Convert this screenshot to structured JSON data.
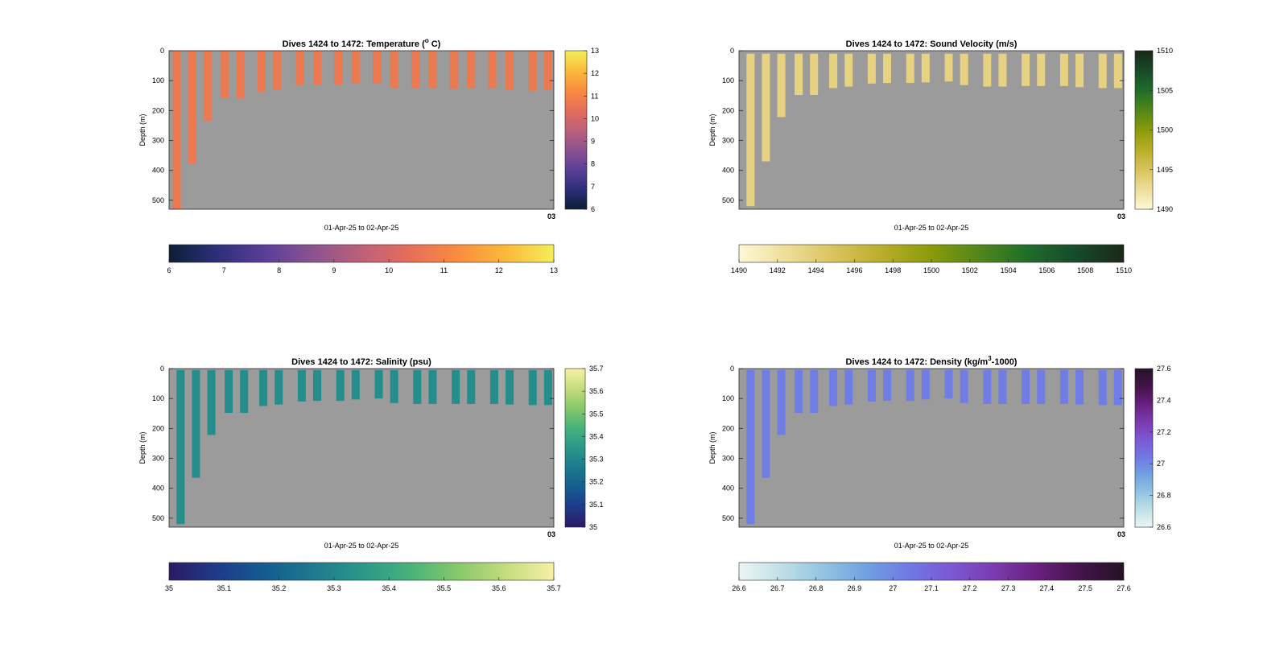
{
  "chart_data": [
    {
      "type": "heatmap",
      "title_prefix": "Dives 1424 to 1472: Temperature (",
      "title_sup": "o",
      "title_suffix": " C)",
      "ylabel": "Depth (m)",
      "xlabel": "01-Apr-25 to 02-Apr-25",
      "x_end_tick": "03",
      "ylim": [
        0,
        530
      ],
      "yticks": [
        "0",
        "100",
        "200",
        "300",
        "400",
        "500"
      ],
      "clim": [
        6,
        13
      ],
      "colorbar_ticks": [
        "6",
        "7",
        "8",
        "9",
        "10",
        "11",
        "12",
        "13"
      ],
      "hcolorbar_ticks": [
        "6",
        "7",
        "8",
        "9",
        "10",
        "11",
        "12",
        "13"
      ],
      "colormap": [
        "#0b1f35",
        "#2d2f7a",
        "#5a3f98",
        "#8c5390",
        "#bd6079",
        "#e56d5a",
        "#f98c3e",
        "#fbb93a",
        "#f3ef59"
      ],
      "profile_value": 10.7,
      "profiles": [
        {
          "t": 0.02,
          "top": 0,
          "bottom": 530
        },
        {
          "t": 0.06,
          "top": 0,
          "bottom": 378
        },
        {
          "t": 0.1,
          "top": 0,
          "bottom": 235
        },
        {
          "t": 0.145,
          "top": 0,
          "bottom": 157
        },
        {
          "t": 0.185,
          "top": 0,
          "bottom": 160
        },
        {
          "t": 0.24,
          "top": 0,
          "bottom": 138
        },
        {
          "t": 0.28,
          "top": 0,
          "bottom": 132
        },
        {
          "t": 0.34,
          "top": 0,
          "bottom": 116
        },
        {
          "t": 0.385,
          "top": 0,
          "bottom": 113
        },
        {
          "t": 0.44,
          "top": 0,
          "bottom": 113
        },
        {
          "t": 0.485,
          "top": 0,
          "bottom": 110
        },
        {
          "t": 0.54,
          "top": 0,
          "bottom": 110
        },
        {
          "t": 0.585,
          "top": 0,
          "bottom": 125
        },
        {
          "t": 0.64,
          "top": 0,
          "bottom": 125
        },
        {
          "t": 0.685,
          "top": 0,
          "bottom": 125
        },
        {
          "t": 0.74,
          "top": 0,
          "bottom": 128
        },
        {
          "t": 0.785,
          "top": 0,
          "bottom": 125
        },
        {
          "t": 0.84,
          "top": 0,
          "bottom": 125
        },
        {
          "t": 0.885,
          "top": 0,
          "bottom": 130
        },
        {
          "t": 0.945,
          "top": 0,
          "bottom": 134
        },
        {
          "t": 0.985,
          "top": 0,
          "bottom": 132
        }
      ]
    },
    {
      "type": "heatmap",
      "title_prefix": "Dives 1424 to 1472: Sound Velocity (m/s)",
      "title_sup": "",
      "title_suffix": "",
      "ylabel": "Depth (m)",
      "xlabel": "01-Apr-25 to 02-Apr-25",
      "x_end_tick": "03",
      "ylim": [
        0,
        530
      ],
      "yticks": [
        "0",
        "100",
        "200",
        "300",
        "400",
        "500"
      ],
      "clim": [
        1490,
        1510
      ],
      "colorbar_ticks": [
        "1490",
        "1495",
        "1500",
        "1505",
        "1510"
      ],
      "hcolorbar_ticks": [
        "1490",
        "1492",
        "1494",
        "1496",
        "1498",
        "1500",
        "1502",
        "1504",
        "1506",
        "1508",
        "1510"
      ],
      "colormap": [
        "#fdf9d6",
        "#eedd99",
        "#d9c25c",
        "#b9ad28",
        "#8a9a0a",
        "#52861a",
        "#1f6d2a",
        "#174a2a",
        "#1a2818"
      ],
      "profile_value": 1493.5,
      "profiles": [
        {
          "t": 0.03,
          "top": 10,
          "bottom": 520
        },
        {
          "t": 0.07,
          "top": 10,
          "bottom": 370
        },
        {
          "t": 0.11,
          "top": 10,
          "bottom": 222
        },
        {
          "t": 0.155,
          "top": 10,
          "bottom": 148
        },
        {
          "t": 0.195,
          "top": 10,
          "bottom": 148
        },
        {
          "t": 0.245,
          "top": 10,
          "bottom": 125
        },
        {
          "t": 0.285,
          "top": 10,
          "bottom": 120
        },
        {
          "t": 0.345,
          "top": 10,
          "bottom": 110
        },
        {
          "t": 0.385,
          "top": 10,
          "bottom": 108
        },
        {
          "t": 0.445,
          "top": 10,
          "bottom": 108
        },
        {
          "t": 0.485,
          "top": 10,
          "bottom": 106
        },
        {
          "t": 0.545,
          "top": 10,
          "bottom": 103
        },
        {
          "t": 0.585,
          "top": 10,
          "bottom": 115
        },
        {
          "t": 0.645,
          "top": 10,
          "bottom": 120
        },
        {
          "t": 0.685,
          "top": 10,
          "bottom": 120
        },
        {
          "t": 0.745,
          "top": 10,
          "bottom": 118
        },
        {
          "t": 0.785,
          "top": 10,
          "bottom": 118
        },
        {
          "t": 0.845,
          "top": 10,
          "bottom": 118
        },
        {
          "t": 0.885,
          "top": 10,
          "bottom": 122
        },
        {
          "t": 0.945,
          "top": 10,
          "bottom": 125
        },
        {
          "t": 0.985,
          "top": 10,
          "bottom": 125
        }
      ]
    },
    {
      "type": "heatmap",
      "title_prefix": "Dives 1424 to 1472: Salinity (psu)",
      "title_sup": "",
      "title_suffix": "",
      "ylabel": "Depth (m)",
      "xlabel": "01-Apr-25 to 02-Apr-25",
      "x_end_tick": "03",
      "ylim": [
        0,
        530
      ],
      "yticks": [
        "0",
        "100",
        "200",
        "300",
        "400",
        "500"
      ],
      "clim": [
        35,
        35.7
      ],
      "colorbar_ticks": [
        "35",
        "35.1",
        "35.2",
        "35.3",
        "35.4",
        "35.5",
        "35.6",
        "35.7"
      ],
      "hcolorbar_ticks": [
        "35",
        "35.1",
        "35.2",
        "35.3",
        "35.4",
        "35.5",
        "35.6",
        "35.7"
      ],
      "colormap": [
        "#2a1a63",
        "#1f3a8c",
        "#155c90",
        "#1c7a8e",
        "#2a978a",
        "#47b27a",
        "#86c86a",
        "#c5dc7c",
        "#f6f1a6"
      ],
      "profile_value": 35.32,
      "profiles": [
        {
          "t": 0.03,
          "top": 5,
          "bottom": 520
        },
        {
          "t": 0.07,
          "top": 5,
          "bottom": 365
        },
        {
          "t": 0.11,
          "top": 5,
          "bottom": 222
        },
        {
          "t": 0.155,
          "top": 5,
          "bottom": 148
        },
        {
          "t": 0.195,
          "top": 5,
          "bottom": 148
        },
        {
          "t": 0.245,
          "top": 5,
          "bottom": 125
        },
        {
          "t": 0.285,
          "top": 5,
          "bottom": 120
        },
        {
          "t": 0.345,
          "top": 5,
          "bottom": 110
        },
        {
          "t": 0.385,
          "top": 5,
          "bottom": 108
        },
        {
          "t": 0.445,
          "top": 5,
          "bottom": 108
        },
        {
          "t": 0.485,
          "top": 5,
          "bottom": 103
        },
        {
          "t": 0.545,
          "top": 5,
          "bottom": 100
        },
        {
          "t": 0.585,
          "top": 5,
          "bottom": 115
        },
        {
          "t": 0.645,
          "top": 5,
          "bottom": 118
        },
        {
          "t": 0.685,
          "top": 5,
          "bottom": 118
        },
        {
          "t": 0.745,
          "top": 5,
          "bottom": 118
        },
        {
          "t": 0.785,
          "top": 5,
          "bottom": 118
        },
        {
          "t": 0.845,
          "top": 5,
          "bottom": 118
        },
        {
          "t": 0.885,
          "top": 5,
          "bottom": 120
        },
        {
          "t": 0.945,
          "top": 5,
          "bottom": 122
        },
        {
          "t": 0.985,
          "top": 5,
          "bottom": 122
        }
      ]
    },
    {
      "type": "heatmap",
      "title_prefix": "Dives 1424 to 1472: Density (kg/m",
      "title_sup": "3",
      "title_suffix": "-1000)",
      "ylabel": "Depth (m)",
      "xlabel": "01-Apr-25 to 02-Apr-25",
      "x_end_tick": "03",
      "ylim": [
        0,
        530
      ],
      "yticks": [
        "0",
        "100",
        "200",
        "300",
        "400",
        "500"
      ],
      "clim": [
        26.6,
        27.6
      ],
      "colorbar_ticks": [
        "26.6",
        "26.8",
        "27",
        "27.2",
        "27.4",
        "27.6"
      ],
      "hcolorbar_ticks": [
        "26.6",
        "26.7",
        "26.8",
        "26.9",
        "27",
        "27.1",
        "27.2",
        "27.3",
        "27.4",
        "27.5",
        "27.6"
      ],
      "colormap": [
        "#eef6f5",
        "#bfdfe6",
        "#92c3e1",
        "#6fa0e2",
        "#7078e4",
        "#7d57d4",
        "#7b3aae",
        "#681f7e",
        "#431449",
        "#261226"
      ],
      "profile_value": 27.03,
      "profiles": [
        {
          "t": 0.03,
          "top": 5,
          "bottom": 520
        },
        {
          "t": 0.07,
          "top": 5,
          "bottom": 365
        },
        {
          "t": 0.11,
          "top": 5,
          "bottom": 222
        },
        {
          "t": 0.155,
          "top": 5,
          "bottom": 148
        },
        {
          "t": 0.195,
          "top": 5,
          "bottom": 148
        },
        {
          "t": 0.245,
          "top": 5,
          "bottom": 125
        },
        {
          "t": 0.285,
          "top": 5,
          "bottom": 120
        },
        {
          "t": 0.345,
          "top": 5,
          "bottom": 110
        },
        {
          "t": 0.385,
          "top": 5,
          "bottom": 108
        },
        {
          "t": 0.445,
          "top": 5,
          "bottom": 108
        },
        {
          "t": 0.485,
          "top": 5,
          "bottom": 103
        },
        {
          "t": 0.545,
          "top": 5,
          "bottom": 100
        },
        {
          "t": 0.585,
          "top": 5,
          "bottom": 115
        },
        {
          "t": 0.645,
          "top": 5,
          "bottom": 118
        },
        {
          "t": 0.685,
          "top": 5,
          "bottom": 118
        },
        {
          "t": 0.745,
          "top": 5,
          "bottom": 118
        },
        {
          "t": 0.785,
          "top": 5,
          "bottom": 118
        },
        {
          "t": 0.845,
          "top": 5,
          "bottom": 118
        },
        {
          "t": 0.885,
          "top": 5,
          "bottom": 120
        },
        {
          "t": 0.945,
          "top": 5,
          "bottom": 122
        },
        {
          "t": 0.985,
          "top": 5,
          "bottom": 122
        }
      ]
    }
  ],
  "style": {
    "axes_background": "#9b9b9b",
    "axis_color": "#262626",
    "text_color": "#000000"
  }
}
